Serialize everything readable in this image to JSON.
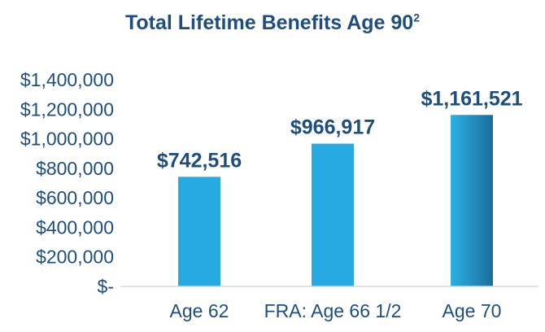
{
  "chart_data": {
    "type": "bar",
    "title": "Total Lifetime Benefits Age 90",
    "title_superscript": "2",
    "categories": [
      "Age 62",
      "FRA: Age 66 1/2",
      "Age 70"
    ],
    "values": [
      742516,
      966917,
      1161521
    ],
    "data_labels": [
      "$742,516",
      "$966,917",
      "$1,161,521"
    ],
    "yticks": [
      0,
      200000,
      400000,
      600000,
      800000,
      1000000,
      1200000,
      1400000
    ],
    "ytick_labels": [
      "$-",
      "$200,000",
      "$400,000",
      "$600,000",
      "$800,000",
      "$1,000,000",
      "$1,200,000",
      "$1,400,000"
    ],
    "ylim": [
      0,
      1400000
    ],
    "xlabel": "",
    "ylabel": "",
    "grid": false,
    "colors": {
      "bar": "#27a9e1",
      "bar_last_top": "#2cb0e3",
      "bar_last_bottom": "#1a6e9c",
      "text": "#1d4e7e",
      "axis": "#d9d9d9"
    }
  }
}
